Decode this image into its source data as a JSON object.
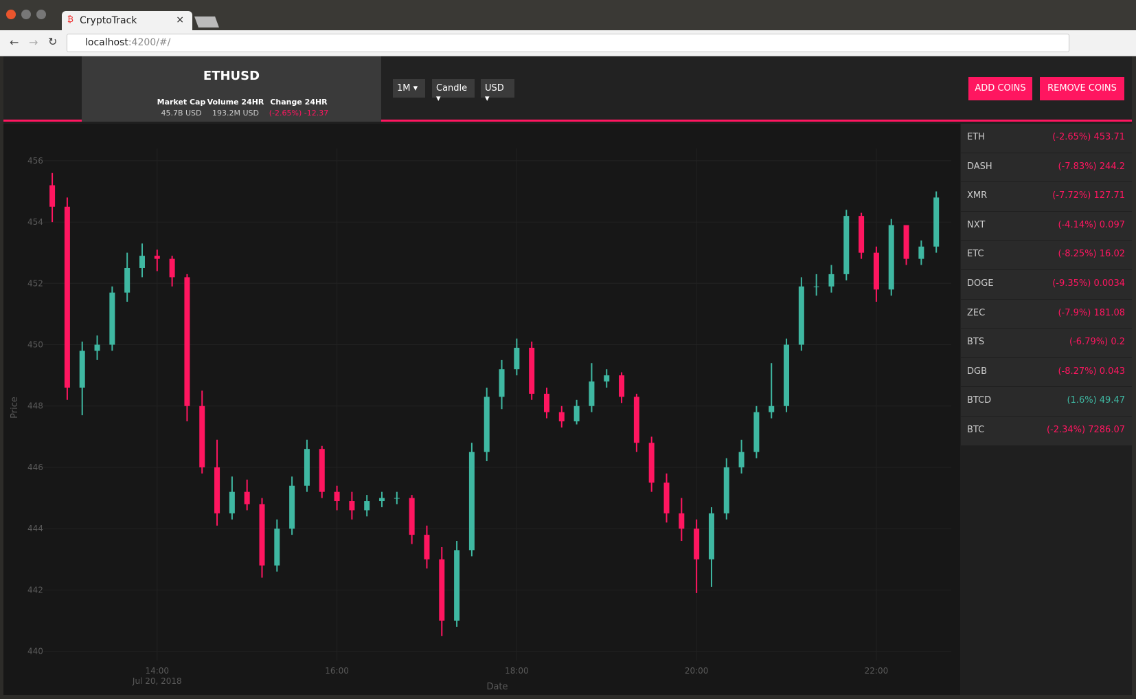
{
  "browser": {
    "tab_title": "CryptoTrack",
    "url_host": "localhost",
    "url_rest": ":4200/#/"
  },
  "header": {
    "pair": "ETHUSD",
    "stats": [
      {
        "label": "Market Cap",
        "value": "45.7B USD"
      },
      {
        "label": "Volume 24HR",
        "value": "193.2M USD"
      },
      {
        "label": "Change 24HR",
        "value": "(-2.65%) -12.37"
      }
    ],
    "selects": [
      "1M",
      "Candle",
      "USD"
    ],
    "buttons": [
      "ADD COINS",
      "REMOVE COINS"
    ]
  },
  "sidebar": {
    "coins": [
      {
        "name": "ETH",
        "change": "(-2.65%)",
        "price": "453.71"
      },
      {
        "name": "DASH",
        "change": "(-7.83%)",
        "price": "244.2"
      },
      {
        "name": "XMR",
        "change": "(-7.72%)",
        "price": "127.71"
      },
      {
        "name": "NXT",
        "change": "(-4.14%)",
        "price": "0.097"
      },
      {
        "name": "ETC",
        "change": "(-8.25%)",
        "price": "16.02"
      },
      {
        "name": "DOGE",
        "change": "(-9.35%)",
        "price": "0.0034"
      },
      {
        "name": "ZEC",
        "change": "(-7.9%)",
        "price": "181.08"
      },
      {
        "name": "BTS",
        "change": "(-6.79%)",
        "price": "0.2"
      },
      {
        "name": "DGB",
        "change": "(-8.27%)",
        "price": "0.043"
      },
      {
        "name": "BTCD",
        "change": "(1.6%)",
        "price": "49.47"
      },
      {
        "name": "BTC",
        "change": "(-2.34%)",
        "price": "7286.07"
      }
    ]
  },
  "chart_data": {
    "type": "candlestick",
    "x_label": "Date",
    "y_label": "Price",
    "x_date_label": "Jul 20, 2018",
    "increasing_color": "#3fb8a2",
    "decreasing_color": "#ff1660",
    "grid": true,
    "x": [
      "2018-07-20T12:50",
      "2018-07-20T13:00",
      "2018-07-20T13:10",
      "2018-07-20T13:20",
      "2018-07-20T13:30",
      "2018-07-20T13:40",
      "2018-07-20T13:50",
      "2018-07-20T14:00",
      "2018-07-20T14:10",
      "2018-07-20T14:20",
      "2018-07-20T14:30",
      "2018-07-20T14:40",
      "2018-07-20T14:50",
      "2018-07-20T15:00",
      "2018-07-20T15:10",
      "2018-07-20T15:20",
      "2018-07-20T15:30",
      "2018-07-20T15:40",
      "2018-07-20T15:50",
      "2018-07-20T16:00",
      "2018-07-20T16:10",
      "2018-07-20T16:20",
      "2018-07-20T16:30",
      "2018-07-20T16:40",
      "2018-07-20T16:50",
      "2018-07-20T17:00",
      "2018-07-20T17:10",
      "2018-07-20T17:20",
      "2018-07-20T17:30",
      "2018-07-20T17:40",
      "2018-07-20T17:50",
      "2018-07-20T18:00",
      "2018-07-20T18:10",
      "2018-07-20T18:20",
      "2018-07-20T18:30",
      "2018-07-20T18:40",
      "2018-07-20T18:50",
      "2018-07-20T19:00",
      "2018-07-20T19:10",
      "2018-07-20T19:20",
      "2018-07-20T19:30",
      "2018-07-20T19:40",
      "2018-07-20T19:50",
      "2018-07-20T20:00",
      "2018-07-20T20:10",
      "2018-07-20T20:20",
      "2018-07-20T20:30",
      "2018-07-20T20:40",
      "2018-07-20T20:50",
      "2018-07-20T21:00",
      "2018-07-20T21:10",
      "2018-07-20T21:20",
      "2018-07-20T21:30",
      "2018-07-20T21:40",
      "2018-07-20T21:50",
      "2018-07-20T22:00",
      "2018-07-20T22:10",
      "2018-07-20T22:20",
      "2018-07-20T22:30",
      "2018-07-20T22:40"
    ],
    "open": [
      455.2,
      454.5,
      448.6,
      449.8,
      450.0,
      451.7,
      452.5,
      452.9,
      452.8,
      452.2,
      448.0,
      446.0,
      444.5,
      445.2,
      444.8,
      442.8,
      444.0,
      445.4,
      446.6,
      445.2,
      444.9,
      444.6,
      444.9,
      445.0,
      445.0,
      443.8,
      443.0,
      441.0,
      443.3,
      446.5,
      448.3,
      449.2,
      449.9,
      448.4,
      447.8,
      447.5,
      448.0,
      448.8,
      449.0,
      448.3,
      446.8,
      445.5,
      444.5,
      444.0,
      443.0,
      444.5,
      446.0,
      446.5,
      447.8,
      448.0,
      450.0,
      451.9,
      451.9,
      452.3,
      454.2,
      453.0,
      451.8,
      453.9,
      452.8,
      453.2
    ],
    "high": [
      455.6,
      454.8,
      450.1,
      450.3,
      451.9,
      453.0,
      453.3,
      453.1,
      452.9,
      452.3,
      448.5,
      446.9,
      445.7,
      445.6,
      445.0,
      444.3,
      445.7,
      446.9,
      446.7,
      445.4,
      445.2,
      445.1,
      445.2,
      445.2,
      445.1,
      444.1,
      443.4,
      443.6,
      446.8,
      448.6,
      449.5,
      450.2,
      450.1,
      448.6,
      448.0,
      448.2,
      449.4,
      449.2,
      449.1,
      448.4,
      447.0,
      445.8,
      445.0,
      444.3,
      444.7,
      446.3,
      446.9,
      448.0,
      449.4,
      450.2,
      452.2,
      452.3,
      452.6,
      454.4,
      454.3,
      453.2,
      454.1,
      453.9,
      453.4,
      455.0
    ],
    "low": [
      454.0,
      448.2,
      447.7,
      449.5,
      449.8,
      451.4,
      452.2,
      452.4,
      451.9,
      447.5,
      445.8,
      444.1,
      444.3,
      444.6,
      442.4,
      442.6,
      443.8,
      445.2,
      445.0,
      444.6,
      444.3,
      444.4,
      444.7,
      444.8,
      443.5,
      442.7,
      440.5,
      440.8,
      443.1,
      446.2,
      447.9,
      449.0,
      448.2,
      447.6,
      447.3,
      447.4,
      447.8,
      448.6,
      448.1,
      446.5,
      445.2,
      444.2,
      443.6,
      441.9,
      442.1,
      444.3,
      445.8,
      446.3,
      447.6,
      447.8,
      449.8,
      451.6,
      451.7,
      452.1,
      452.8,
      451.4,
      451.6,
      452.6,
      452.6,
      453.0
    ],
    "close": [
      454.5,
      448.6,
      449.8,
      450.0,
      451.7,
      452.5,
      452.9,
      452.8,
      452.2,
      448.0,
      446.0,
      444.5,
      445.2,
      444.8,
      442.8,
      444.0,
      445.4,
      446.6,
      445.2,
      444.9,
      444.6,
      444.9,
      445.0,
      445.0,
      443.8,
      443.0,
      441.0,
      443.3,
      446.5,
      448.3,
      449.2,
      449.9,
      448.4,
      447.8,
      447.5,
      448.0,
      448.8,
      449.0,
      448.3,
      446.8,
      445.5,
      444.5,
      444.0,
      443.0,
      444.5,
      446.0,
      446.5,
      447.8,
      448.0,
      450.0,
      451.9,
      451.9,
      452.3,
      454.2,
      453.0,
      451.8,
      453.9,
      452.8,
      453.2,
      454.8
    ],
    "xlim": [
      "2018-07-20T12:44",
      "2018-07-20T22:50"
    ],
    "xticks": [
      {
        "value": "2018-07-20T14:00",
        "label": "14:00"
      },
      {
        "value": "2018-07-20T16:00",
        "label": "16:00"
      },
      {
        "value": "2018-07-20T18:00",
        "label": "18:00"
      },
      {
        "value": "2018-07-20T20:00",
        "label": "20:00"
      },
      {
        "value": "2018-07-20T22:00",
        "label": "22:00"
      }
    ],
    "ylim": [
      439.7,
      456.4
    ],
    "yticks": [
      440,
      442,
      444,
      446,
      448,
      450,
      452,
      454,
      456
    ]
  }
}
